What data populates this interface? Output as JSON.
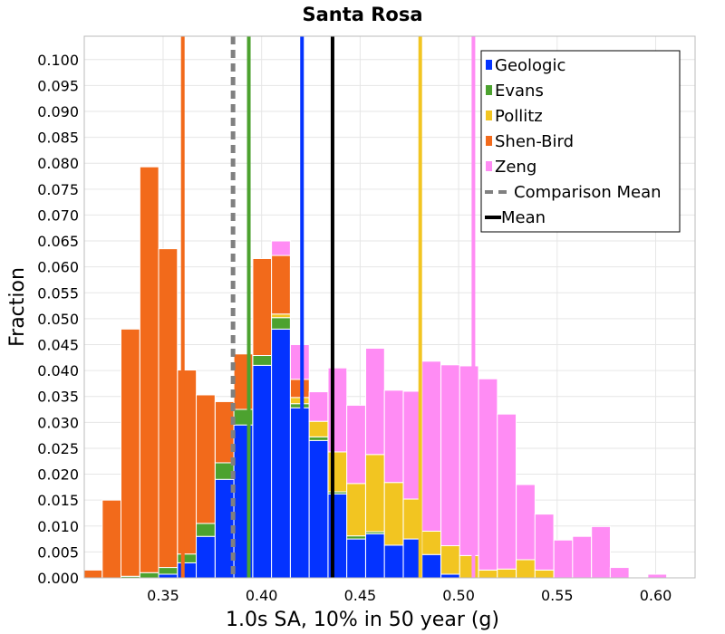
{
  "chart_data": {
    "type": "bar",
    "stacked": true,
    "title": "Santa Rosa",
    "xlabel": "1.0s SA, 10% in 50 year (g)",
    "ylabel": "Fraction",
    "xlim": [
      0.31,
      0.62
    ],
    "ylim": [
      0.0,
      0.1045
    ],
    "grid": true,
    "legend_position": "top-right",
    "x_ticks": [
      0.35,
      0.4,
      0.45,
      0.5,
      0.55,
      0.6
    ],
    "x_tick_labels": [
      "0.35",
      "0.40",
      "0.45",
      "0.50",
      "0.55",
      "0.60"
    ],
    "y_ticks": [
      0.0,
      0.005,
      0.01,
      0.015,
      0.02,
      0.025,
      0.03,
      0.035,
      0.04,
      0.045,
      0.05,
      0.055,
      0.06,
      0.065,
      0.07,
      0.075,
      0.08,
      0.085,
      0.09,
      0.095,
      0.1
    ],
    "y_tick_labels": [
      "0.000",
      "0.005",
      "0.010",
      "0.015",
      "0.020",
      "0.025",
      "0.030",
      "0.035",
      "0.040",
      "0.045",
      "0.050",
      "0.055",
      "0.060",
      "0.065",
      "0.070",
      "0.075",
      "0.080",
      "0.085",
      "0.090",
      "0.095",
      "0.100"
    ],
    "bin_width": 0.00955,
    "bin_centers": [
      0.3143,
      0.3239,
      0.3334,
      0.343,
      0.3525,
      0.3621,
      0.3716,
      0.3812,
      0.3907,
      0.4003,
      0.4098,
      0.4194,
      0.4289,
      0.4385,
      0.448,
      0.4576,
      0.4671,
      0.4767,
      0.4862,
      0.4958,
      0.5053,
      0.5149,
      0.5244,
      0.534,
      0.5435,
      0.5531,
      0.5626,
      0.5722,
      0.5817,
      0.5913,
      0.6008,
      0.6104,
      0.6199
    ],
    "series": [
      {
        "name": "Geologic",
        "color": "#0433ff",
        "values": [
          0,
          0,
          0,
          0,
          0.0007,
          0.0029,
          0.008,
          0.019,
          0.0295,
          0.041,
          0.048,
          0.0328,
          0.0265,
          0.0162,
          0.0075,
          0.0085,
          0.0063,
          0.0075,
          0.0045,
          0.0007,
          0,
          0,
          0,
          0,
          0,
          0,
          0,
          0,
          0,
          0,
          0,
          0,
          0
        ]
      },
      {
        "name": "Evans",
        "color": "#4ca22f",
        "values": [
          0,
          0,
          0.0003,
          0.001,
          0.0013,
          0.0017,
          0.0025,
          0.0032,
          0.003,
          0.0019,
          0.0022,
          0.0008,
          0.0007,
          0.0004,
          0.0006,
          0.0004,
          0,
          0,
          0,
          0,
          0,
          0,
          0,
          0,
          0,
          0,
          0,
          0,
          0,
          0,
          0,
          0,
          0
        ]
      },
      {
        "name": "Pollitz",
        "color": "#f2c521",
        "values": [
          0,
          0,
          0,
          0,
          0,
          0,
          0,
          0,
          0,
          0,
          0.0007,
          0.0012,
          0.003,
          0.0077,
          0.0101,
          0.0149,
          0.0121,
          0.0077,
          0.0045,
          0.0055,
          0.0043,
          0.0015,
          0.0017,
          0.0035,
          0.0015,
          0,
          0,
          0,
          0,
          0,
          0,
          0,
          0
        ]
      },
      {
        "name": "Shen-Bird",
        "color": "#f26a1b",
        "values": [
          0.0015,
          0.015,
          0.0477,
          0.0783,
          0.0615,
          0.0355,
          0.0248,
          0.0118,
          0.0107,
          0.0187,
          0.0113,
          0.0035,
          0,
          0,
          0,
          0,
          0,
          0,
          0,
          0,
          0,
          0,
          0,
          0,
          0,
          0,
          0,
          0,
          0,
          0,
          0,
          0,
          0
        ]
      },
      {
        "name": "Zeng",
        "color": "#ff8cf4",
        "values": [
          0,
          0,
          0,
          0,
          0,
          0,
          0,
          0,
          0,
          0,
          0.0028,
          0.0067,
          0.0057,
          0.0162,
          0.0151,
          0.0205,
          0.0178,
          0.0208,
          0.0328,
          0.0349,
          0.0366,
          0.0369,
          0.0299,
          0.0145,
          0.0108,
          0.0073,
          0.008,
          0.0099,
          0.002,
          0,
          0.0007,
          0,
          0
        ]
      }
    ],
    "vertical_lines": [
      {
        "name": "Geologic",
        "x": 0.4205,
        "color": "#0433ff",
        "style": "solid"
      },
      {
        "name": "Evans",
        "x": 0.3935,
        "color": "#4ca22f",
        "style": "solid"
      },
      {
        "name": "Pollitz",
        "x": 0.4805,
        "color": "#f2c521",
        "style": "solid"
      },
      {
        "name": "Shen-Bird",
        "x": 0.36,
        "color": "#f26a1b",
        "style": "solid"
      },
      {
        "name": "Zeng",
        "x": 0.5075,
        "color": "#ff8cf4",
        "style": "solid"
      },
      {
        "name": "Comparison Mean",
        "x": 0.3855,
        "color": "#808080",
        "style": "dashed"
      },
      {
        "name": "Mean",
        "x": 0.436,
        "color": "#000000",
        "style": "solid"
      }
    ],
    "legend": [
      {
        "label": "Geologic",
        "color": "#0433ff",
        "kind": "box"
      },
      {
        "label": "Evans",
        "color": "#4ca22f",
        "kind": "box"
      },
      {
        "label": "Pollitz",
        "color": "#f2c521",
        "kind": "box"
      },
      {
        "label": "Shen-Bird",
        "color": "#f26a1b",
        "kind": "box"
      },
      {
        "label": "Zeng",
        "color": "#ff8cf4",
        "kind": "box"
      },
      {
        "label": "Comparison Mean",
        "color": "#808080",
        "kind": "dashed-line"
      },
      {
        "label": "Mean",
        "color": "#000000",
        "kind": "line"
      }
    ]
  }
}
